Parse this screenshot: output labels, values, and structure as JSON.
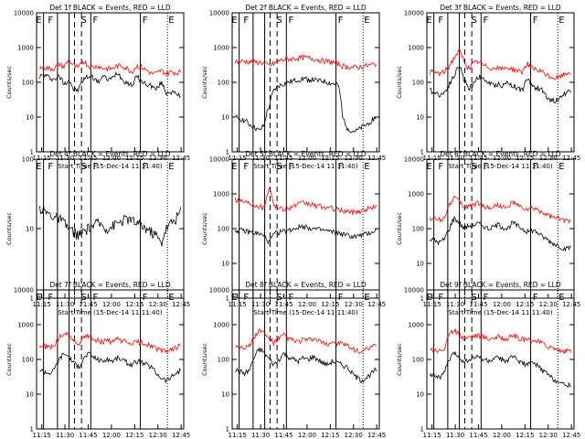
{
  "figure": {
    "xlabel": "Start Time (15-Dec-14 11:11:40)",
    "ylabel": "Counts/sec",
    "time_ticks": [
      "11:15",
      "11:30",
      "11:45",
      "12:00",
      "12:15",
      "12:30",
      "12:45"
    ],
    "colors": {
      "events": "#000000",
      "lld": "#ff0000"
    }
  },
  "chart_data": [
    {
      "type": "line",
      "title": "Det 1f BLACK = Events, RED = LLD",
      "ylim": [
        1,
        10000
      ],
      "yscale": "log",
      "y_ticks": [
        "1",
        "10",
        "100",
        "1000",
        "10000"
      ],
      "letters": [
        "E",
        "F",
        "S",
        "F",
        "F",
        "E"
      ],
      "series": [
        {
          "name": "Events",
          "color": "#000000",
          "values": [
            150,
            160,
            140,
            120,
            150,
            90,
            120,
            60,
            60,
            120,
            150,
            140,
            100,
            150,
            120,
            130,
            200,
            120,
            100,
            80,
            150,
            100,
            90,
            80,
            60,
            100,
            50,
            55,
            45,
            40
          ]
        },
        {
          "name": "LLD",
          "color": "#ff0000",
          "values": [
            260,
            270,
            250,
            250,
            330,
            280,
            420,
            300,
            260,
            420,
            300,
            270,
            300,
            250,
            250,
            250,
            300,
            300,
            250,
            200,
            300,
            270,
            220,
            180,
            180,
            220,
            180,
            200,
            190,
            200
          ]
        }
      ]
    },
    {
      "type": "line",
      "title": "Det 2f BLACK = Events, RED = LLD",
      "ylim": [
        1,
        10000
      ],
      "yscale": "log",
      "y_ticks": [
        "1",
        "10",
        "100",
        "1000",
        "10000"
      ],
      "letters": [
        "E",
        "F",
        "S",
        "F",
        "F",
        "E"
      ],
      "series": [
        {
          "name": "Events",
          "color": "#000000",
          "values": [
            10,
            9,
            8,
            6,
            5,
            4,
            6,
            20,
            60,
            80,
            90,
            100,
            110,
            120,
            130,
            120,
            120,
            110,
            110,
            100,
            90,
            90,
            10,
            5,
            4,
            4,
            5,
            6,
            8,
            10
          ]
        },
        {
          "name": "LLD",
          "color": "#ff0000",
          "values": [
            400,
            400,
            400,
            390,
            380,
            380,
            350,
            300,
            350,
            420,
            450,
            470,
            480,
            500,
            520,
            500,
            480,
            450,
            420,
            400,
            380,
            350,
            300,
            280,
            270,
            270,
            280,
            300,
            320,
            350
          ]
        }
      ]
    },
    {
      "type": "line",
      "title": "Det 3f BLACK = Events, RED = LLD",
      "ylim": [
        1,
        10000
      ],
      "yscale": "log",
      "y_ticks": [
        "1",
        "10",
        "100",
        "1000",
        "10000"
      ],
      "letters": [
        "E",
        "F",
        "S",
        "F",
        "F",
        "E"
      ],
      "series": [
        {
          "name": "Events",
          "color": "#000000",
          "values": [
            60,
            50,
            45,
            50,
            90,
            150,
            300,
            120,
            60,
            100,
            150,
            120,
            100,
            80,
            90,
            80,
            100,
            80,
            70,
            60,
            120,
            80,
            70,
            60,
            40,
            30,
            30,
            40,
            50,
            60
          ]
        },
        {
          "name": "LLD",
          "color": "#ff0000",
          "values": [
            200,
            190,
            180,
            200,
            300,
            500,
            800,
            400,
            250,
            350,
            400,
            300,
            280,
            250,
            260,
            240,
            270,
            240,
            220,
            200,
            350,
            250,
            220,
            200,
            160,
            140,
            130,
            150,
            180,
            200
          ]
        }
      ]
    },
    {
      "type": "line",
      "title": "Det 4f BLACK = Events, RED = LLD",
      "ylim": [
        1,
        100
      ],
      "yscale": "log",
      "y_ticks": [
        "1",
        "10",
        "100"
      ],
      "letters": [
        "E",
        "F",
        "S",
        "F",
        "F",
        "E"
      ],
      "series": [
        {
          "name": "Events",
          "color": "#000000",
          "values": [
            20,
            18,
            16,
            15,
            14,
            12,
            10,
            9,
            8,
            9,
            10,
            11,
            12,
            11,
            10,
            11,
            12,
            13,
            14,
            13,
            12,
            11,
            10,
            9,
            8,
            6,
            10,
            12,
            14,
            18
          ]
        }
      ]
    },
    {
      "type": "line",
      "title": "Det 5f BLACK = Events, RED = LLD",
      "ylim": [
        1,
        10000
      ],
      "yscale": "log",
      "y_ticks": [
        "1",
        "10",
        "100",
        "1000",
        "10000"
      ],
      "letters": [
        "E",
        "F",
        "S",
        "F",
        "F",
        "E"
      ],
      "series": [
        {
          "name": "Events",
          "color": "#000000",
          "values": [
            90,
            90,
            85,
            80,
            75,
            70,
            60,
            40,
            70,
            80,
            85,
            90,
            100,
            110,
            120,
            110,
            100,
            95,
            90,
            85,
            80,
            75,
            70,
            65,
            60,
            60,
            65,
            70,
            80,
            90
          ]
        },
        {
          "name": "LLD",
          "color": "#ff0000",
          "values": [
            700,
            650,
            600,
            550,
            500,
            450,
            400,
            1500,
            450,
            400,
            380,
            400,
            450,
            500,
            550,
            520,
            480,
            450,
            420,
            400,
            380,
            350,
            330,
            320,
            300,
            310,
            330,
            360,
            400,
            450
          ]
        }
      ]
    },
    {
      "type": "line",
      "title": "Det 6f BLACK = Events, RED = LLD",
      "ylim": [
        1,
        10000
      ],
      "yscale": "log",
      "y_ticks": [
        "1",
        "10",
        "100",
        "1000",
        "10000"
      ],
      "letters": [
        "E",
        "F",
        "S",
        "F",
        "F",
        "E"
      ],
      "series": [
        {
          "name": "Events",
          "color": "#000000",
          "values": [
            50,
            45,
            40,
            50,
            100,
            200,
            150,
            100,
            120,
            130,
            140,
            120,
            100,
            110,
            130,
            110,
            100,
            150,
            120,
            100,
            80,
            90,
            80,
            60,
            50,
            40,
            35,
            30,
            25,
            30
          ]
        },
        {
          "name": "LLD",
          "color": "#ff0000",
          "values": [
            200,
            190,
            180,
            200,
            500,
            800,
            600,
            400,
            450,
            500,
            550,
            450,
            400,
            420,
            500,
            420,
            380,
            600,
            450,
            400,
            350,
            380,
            350,
            300,
            250,
            220,
            200,
            180,
            170,
            180
          ]
        }
      ]
    },
    {
      "type": "line",
      "title": "Det 7f BLACK = Events, RED = LLD",
      "ylim": [
        1,
        10000
      ],
      "yscale": "log",
      "y_ticks": [
        "1",
        "10",
        "100",
        "1000",
        "10000"
      ],
      "letters": [
        "E",
        "F",
        "S",
        "F",
        "F",
        "E"
      ],
      "series": [
        {
          "name": "Events",
          "color": "#000000",
          "values": [
            50,
            45,
            40,
            50,
            100,
            150,
            120,
            80,
            60,
            100,
            150,
            120,
            100,
            90,
            100,
            90,
            110,
            100,
            80,
            70,
            90,
            80,
            70,
            60,
            40,
            30,
            25,
            30,
            40,
            50
          ]
        },
        {
          "name": "LLD",
          "color": "#ff0000",
          "values": [
            250,
            240,
            230,
            250,
            400,
            600,
            500,
            350,
            280,
            400,
            500,
            400,
            350,
            320,
            350,
            320,
            380,
            350,
            300,
            280,
            320,
            300,
            280,
            250,
            200,
            180,
            170,
            190,
            220,
            260
          ]
        }
      ]
    },
    {
      "type": "line",
      "title": "Det 8f BLACK = Events, RED = LLD",
      "ylim": [
        1,
        10000
      ],
      "yscale": "log",
      "y_ticks": [
        "1",
        "10",
        "100",
        "1000",
        "10000"
      ],
      "letters": [
        "E",
        "F",
        "S",
        "F",
        "F",
        "E"
      ],
      "series": [
        {
          "name": "Events",
          "color": "#000000",
          "values": [
            50,
            45,
            40,
            50,
            120,
            200,
            150,
            100,
            70,
            100,
            150,
            120,
            100,
            90,
            110,
            100,
            120,
            100,
            80,
            70,
            90,
            80,
            70,
            60,
            40,
            30,
            25,
            30,
            40,
            50
          ]
        },
        {
          "name": "LLD",
          "color": "#ff0000",
          "values": [
            250,
            240,
            230,
            250,
            450,
            700,
            550,
            400,
            300,
            400,
            500,
            400,
            350,
            320,
            380,
            350,
            400,
            350,
            300,
            280,
            320,
            300,
            280,
            250,
            200,
            180,
            170,
            190,
            220,
            260
          ]
        }
      ]
    },
    {
      "type": "line",
      "title": "Det 9f BLACK = Events, RED = LLD",
      "ylim": [
        1,
        10000
      ],
      "yscale": "log",
      "y_ticks": [
        "1",
        "10",
        "100",
        "1000",
        "10000"
      ],
      "letters": [
        "E",
        "F",
        "S",
        "F",
        "F",
        "E"
      ],
      "series": [
        {
          "name": "Events",
          "color": "#000000",
          "values": [
            40,
            35,
            30,
            40,
            100,
            150,
            120,
            80,
            100,
            110,
            120,
            100,
            90,
            100,
            110,
            100,
            90,
            120,
            100,
            80,
            70,
            80,
            70,
            50,
            40,
            30,
            25,
            20,
            18,
            20
          ]
        },
        {
          "name": "LLD",
          "color": "#ff0000",
          "values": [
            200,
            190,
            180,
            200,
            500,
            700,
            550,
            400,
            450,
            480,
            500,
            450,
            400,
            420,
            450,
            420,
            380,
            500,
            420,
            380,
            350,
            370,
            340,
            300,
            250,
            220,
            200,
            180,
            170,
            180
          ]
        }
      ]
    }
  ]
}
